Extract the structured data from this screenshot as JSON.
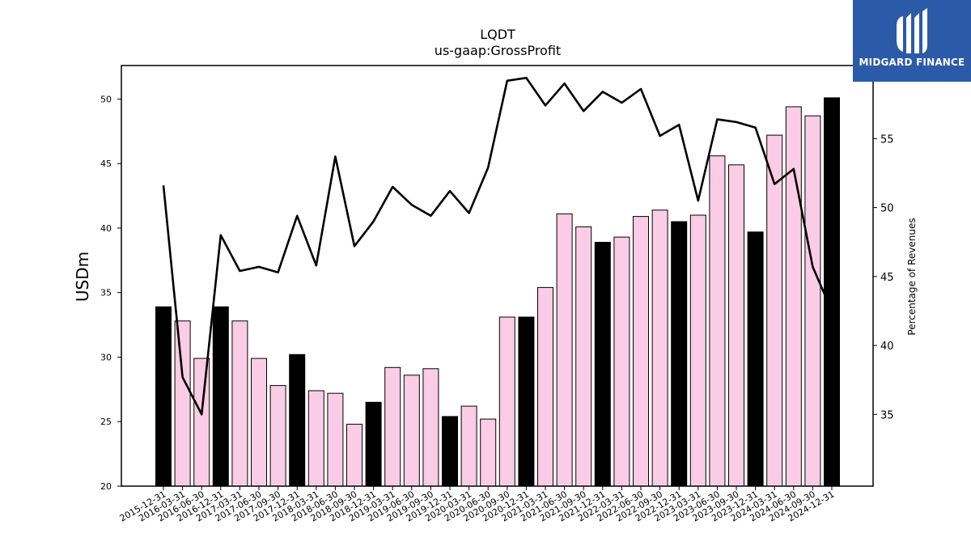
{
  "brand": {
    "name": "MIDGARD FINANCE",
    "logo_icon": "midgard-logo-icon",
    "color": "#2b5aa8"
  },
  "chart_data": {
    "type": "bar+line",
    "title": "LQDT",
    "subtitle": "us-gaap:GrossProfit",
    "ylabel": "USDm",
    "ylabel_right": "Percentage of Revenues",
    "ylim": [
      20,
      52.6
    ],
    "ylim_right": [
      29.8,
      60.3
    ],
    "yticks": [
      20,
      25,
      30,
      35,
      40,
      45,
      50
    ],
    "yticks_right": [
      35,
      40,
      45,
      50,
      55
    ],
    "colors": {
      "annual_bar": "#000000",
      "quarter_bar": "#fbcce6",
      "line": "#000000"
    },
    "categories": [
      "2015-12-31",
      "2016-03-31",
      "2016-06-30",
      "2016-12-31",
      "2017-03-31",
      "2017-06-30",
      "2017-09-30",
      "2017-12-31",
      "2018-03-31",
      "2018-06-30",
      "2018-09-30",
      "2018-12-31",
      "2019-03-31",
      "2019-06-30",
      "2019-09-30",
      "2019-12-31",
      "2020-03-31",
      "2020-06-30",
      "2020-09-30",
      "2020-12-31",
      "2021-03-31",
      "2021-06-30",
      "2021-09-30",
      "2021-12-31",
      "2022-03-31",
      "2022-06-30",
      "2022-09-30",
      "2022-12-31",
      "2023-03-31",
      "2023-06-30",
      "2023-09-30",
      "2023-12-31",
      "2024-03-31",
      "2024-06-30",
      "2024-09-30",
      "2024-12-31"
    ],
    "series": [
      {
        "values": [
          33.9,
          32.8,
          29.9,
          33.9,
          32.8,
          29.9,
          27.8,
          30.2,
          27.4,
          27.2,
          24.8,
          26.5,
          29.2,
          28.6,
          29.1,
          25.4,
          26.2,
          25.2,
          33.1,
          33.1,
          35.4,
          41.1,
          40.1,
          38.9,
          39.3,
          40.9,
          41.4,
          40.5,
          41.0,
          45.6,
          44.9,
          39.7,
          47.2,
          49.4,
          48.7,
          50.1
        ],
        "annual": [
          true,
          false,
          false,
          true,
          false,
          false,
          false,
          true,
          false,
          false,
          false,
          true,
          false,
          false,
          false,
          true,
          false,
          false,
          false,
          true,
          false,
          false,
          false,
          true,
          false,
          false,
          false,
          true,
          false,
          false,
          false,
          true,
          false,
          false,
          false,
          true
        ]
      },
      {
        "values": [
          51.6,
          37.7,
          35.0,
          48.0,
          45.4,
          45.7,
          45.3,
          49.4,
          45.8,
          53.7,
          47.2,
          49.0,
          51.5,
          50.2,
          49.4,
          51.2,
          49.6,
          52.9,
          59.2,
          59.4,
          57.4,
          59.0,
          57.0,
          58.4,
          57.6,
          58.6,
          55.2,
          56.0,
          50.5,
          56.4,
          56.2,
          55.8,
          51.7,
          52.8,
          45.7,
          42.5
        ]
      }
    ]
  }
}
